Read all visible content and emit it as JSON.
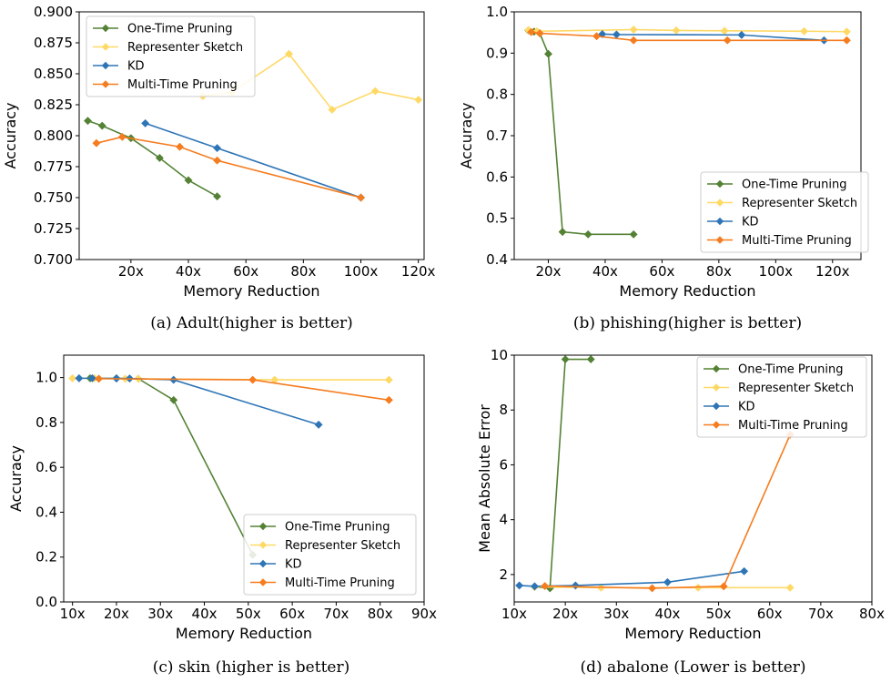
{
  "colors": {
    "one_time": "#548235",
    "representer": "#FFD966",
    "kd": "#2E75B6",
    "multi_time": "#F57C1F"
  },
  "chart_data": [
    {
      "type": "line",
      "caption": "(a) Adult(higher is better)",
      "xlabel": "Memory Reduction",
      "ylabel": "Accuracy",
      "xlim": [
        2,
        122
      ],
      "ylim": [
        0.7,
        0.9
      ],
      "xticks": [
        20,
        40,
        60,
        80,
        100,
        120
      ],
      "xtick_labels": [
        "20x",
        "40x",
        "60x",
        "80x",
        "100x",
        "120x"
      ],
      "yticks": [
        0.7,
        0.725,
        0.75,
        0.775,
        0.8,
        0.825,
        0.85,
        0.875,
        0.9
      ],
      "ytick_labels": [
        "0.700",
        "0.725",
        "0.750",
        "0.775",
        "0.800",
        "0.825",
        "0.850",
        "0.875",
        "0.900"
      ],
      "legend_position": "top-left",
      "series": [
        {
          "name": "One-Time Pruning",
          "color_key": "one_time",
          "x": [
            5,
            10,
            20,
            30,
            40,
            50
          ],
          "y": [
            0.812,
            0.808,
            0.798,
            0.782,
            0.764,
            0.751
          ]
        },
        {
          "name": "Representer Sketch",
          "color_key": "representer",
          "x": [
            45,
            55,
            75,
            90,
            105,
            120
          ],
          "y": [
            0.832,
            0.835,
            0.866,
            0.821,
            0.836,
            0.829
          ]
        },
        {
          "name": "KD",
          "color_key": "kd",
          "x": [
            25,
            50,
            100
          ],
          "y": [
            0.81,
            0.79,
            0.75
          ]
        },
        {
          "name": "Multi-Time Pruning",
          "color_key": "multi_time",
          "x": [
            8,
            17,
            37,
            50,
            100
          ],
          "y": [
            0.794,
            0.799,
            0.791,
            0.78,
            0.75
          ]
        }
      ]
    },
    {
      "type": "line",
      "caption": "(b) phishing(higher is better)",
      "xlabel": "Memory Reduction",
      "ylabel": "Accuracy",
      "xlim": [
        8,
        130
      ],
      "ylim": [
        0.4,
        1.0
      ],
      "xticks": [
        20,
        40,
        60,
        80,
        100,
        120
      ],
      "xtick_labels": [
        "20x",
        "40x",
        "60x",
        "80x",
        "100x",
        "120x"
      ],
      "yticks": [
        0.4,
        0.5,
        0.6,
        0.7,
        0.8,
        0.9,
        1.0
      ],
      "ytick_labels": [
        "0.4",
        "0.5",
        "0.6",
        "0.7",
        "0.8",
        "0.9",
        "1.0"
      ],
      "legend_position": "lower-right",
      "series": [
        {
          "name": "One-Time Pruning",
          "color_key": "one_time",
          "x": [
            13,
            15,
            17,
            20,
            25,
            34,
            50
          ],
          "y": [
            0.955,
            0.952,
            0.948,
            0.898,
            0.467,
            0.461,
            0.461
          ]
        },
        {
          "name": "Representer Sketch",
          "color_key": "representer",
          "x": [
            13,
            16,
            50,
            65,
            82,
            110,
            125
          ],
          "y": [
            0.956,
            0.953,
            0.957,
            0.955,
            0.954,
            0.953,
            0.952
          ]
        },
        {
          "name": "KD",
          "color_key": "kd",
          "x": [
            39,
            44,
            88,
            117
          ],
          "y": [
            0.946,
            0.945,
            0.944,
            0.931
          ]
        },
        {
          "name": "Multi-Time Pruning",
          "color_key": "multi_time",
          "x": [
            14,
            17,
            37,
            50,
            83,
            125
          ],
          "y": [
            0.951,
            0.948,
            0.941,
            0.931,
            0.931,
            0.931
          ]
        }
      ]
    },
    {
      "type": "line",
      "caption": "(c) skin (higher is better)",
      "xlabel": "Memory Reduction",
      "ylabel": "Accuracy",
      "xlim": [
        8,
        90
      ],
      "ylim": [
        0.0,
        1.1
      ],
      "xticks": [
        10,
        20,
        30,
        40,
        50,
        60,
        70,
        80,
        90
      ],
      "xtick_labels": [
        "10x",
        "20x",
        "30x",
        "40x",
        "50x",
        "60x",
        "70x",
        "80x",
        "90x"
      ],
      "yticks": [
        0.0,
        0.2,
        0.4,
        0.6,
        0.8,
        1.0
      ],
      "ytick_labels": [
        "0.0",
        "0.2",
        "0.4",
        "0.6",
        "0.8",
        "1.0"
      ],
      "legend_position": "lower-right",
      "series": [
        {
          "name": "One-Time Pruning",
          "color_key": "one_time",
          "x": [
            14,
            20,
            25,
            33,
            51
          ],
          "y": [
            0.997,
            0.997,
            0.995,
            0.9,
            0.21
          ]
        },
        {
          "name": "Representer Sketch",
          "color_key": "representer",
          "x": [
            10,
            15,
            22,
            25,
            56,
            82
          ],
          "y": [
            0.997,
            0.997,
            0.995,
            0.995,
            0.99,
            0.99
          ]
        },
        {
          "name": "KD",
          "color_key": "kd",
          "x": [
            11.5,
            14.5,
            20,
            23,
            33,
            66
          ],
          "y": [
            0.997,
            0.997,
            0.996,
            0.996,
            0.99,
            0.79
          ]
        },
        {
          "name": "Multi-Time Pruning",
          "color_key": "multi_time",
          "x": [
            16,
            51,
            82
          ],
          "y": [
            0.995,
            0.99,
            0.9
          ]
        }
      ]
    },
    {
      "type": "line",
      "caption": "(d) abalone (Lower is better)",
      "xlabel": "Memory Reduction",
      "ylabel": "Mean Absolute Error",
      "xlim": [
        10,
        80
      ],
      "ylim": [
        1.0,
        10.0
      ],
      "xticks": [
        10,
        20,
        30,
        40,
        50,
        60,
        70,
        80
      ],
      "xtick_labels": [
        "10x",
        "20x",
        "30x",
        "40x",
        "50x",
        "60x",
        "70x",
        "80x"
      ],
      "yticks": [
        2,
        4,
        6,
        8,
        10
      ],
      "ytick_labels": [
        "2",
        "4",
        "6",
        "8",
        "10"
      ],
      "legend_position": "top-right",
      "series": [
        {
          "name": "One-Time Pruning",
          "color_key": "one_time",
          "x": [
            14,
            17,
            20,
            25
          ],
          "y": [
            1.55,
            1.5,
            9.85,
            9.85
          ]
        },
        {
          "name": "Representer Sketch",
          "color_key": "representer",
          "x": [
            14,
            27,
            46,
            64
          ],
          "y": [
            1.55,
            1.52,
            1.52,
            1.52
          ]
        },
        {
          "name": "KD",
          "color_key": "kd",
          "x": [
            11,
            14,
            22,
            40,
            55
          ],
          "y": [
            1.6,
            1.57,
            1.6,
            1.72,
            2.12
          ]
        },
        {
          "name": "Multi-Time Pruning",
          "color_key": "multi_time",
          "x": [
            16,
            37,
            51,
            64
          ],
          "y": [
            1.58,
            1.5,
            1.57,
            7.1
          ]
        }
      ]
    }
  ]
}
